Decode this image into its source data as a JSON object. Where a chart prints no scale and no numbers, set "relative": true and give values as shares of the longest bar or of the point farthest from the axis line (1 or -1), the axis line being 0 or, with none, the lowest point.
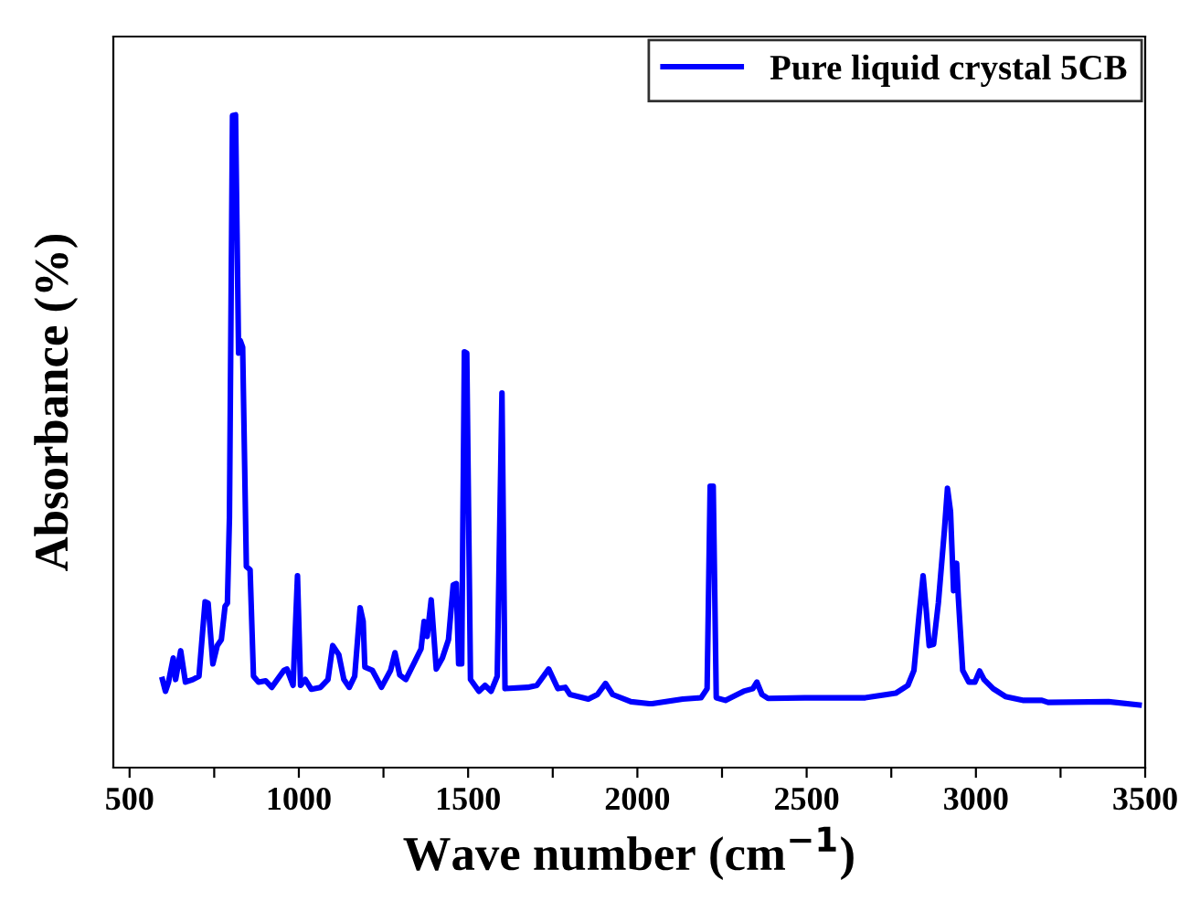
{
  "chart_data": {
    "type": "line",
    "xlabel": "Wave number (cm$^{−1}$)",
    "ylabel": "Absorbance (%)",
    "relative": true,
    "legend": "top right",
    "xlim": [
      452,
      3500
    ],
    "xticks": [
      500,
      {
        "value": 750,
        "label": null
      },
      1000,
      {
        "value": 1250,
        "label": null
      },
      1500,
      {
        "value": 1750,
        "label": null
      },
      2000,
      {
        "value": 2250,
        "label": null
      },
      2500,
      {
        "value": 2750,
        "label": null
      },
      3000,
      {
        "value": 3250,
        "label": null
      },
      3500
    ],
    "series": [
      {
        "name": "Pure liquid crystal 5CB",
        "color": "#0000ff",
        "x": [
          597,
          606,
          615,
          629,
          636,
          651,
          665,
          687,
          705,
          723,
          732,
          746,
          759,
          771,
          782,
          789,
          795,
          804,
          813,
          822,
          827,
          834,
          845,
          856,
          866,
          881,
          902,
          920,
          956,
          965,
          983,
          996,
          1005,
          1019,
          1037,
          1064,
          1086,
          1100,
          1118,
          1133,
          1149,
          1165,
          1181,
          1190,
          1195,
          1217,
          1244,
          1271,
          1284,
          1298,
          1316,
          1343,
          1361,
          1370,
          1379,
          1391,
          1406,
          1424,
          1442,
          1456,
          1465,
          1472,
          1481,
          1489,
          1496,
          1507,
          1532,
          1550,
          1568,
          1586,
          1600,
          1609,
          1676,
          1703,
          1738,
          1765,
          1787,
          1801,
          1855,
          1882,
          1906,
          1927,
          1981,
          2035,
          2044,
          2134,
          2188,
          2206,
          2215,
          2224,
          2233,
          2260,
          2314,
          2341,
          2353,
          2368,
          2386,
          2494,
          2673,
          2763,
          2799,
          2817,
          2832,
          2844,
          2853,
          2862,
          2875,
          2889,
          2907,
          2916,
          2925,
          2934,
          2943,
          2948,
          2961,
          2979,
          2997,
          3011,
          3024,
          3051,
          3087,
          3141,
          3195,
          3213,
          3392,
          3482
        ],
        "values": [
          0.135,
          0.117,
          0.131,
          0.168,
          0.135,
          0.179,
          0.131,
          0.135,
          0.14,
          0.254,
          0.252,
          0.159,
          0.187,
          0.196,
          0.247,
          0.252,
          0.383,
          0.999,
          1.0,
          0.635,
          0.654,
          0.644,
          0.308,
          0.303,
          0.14,
          0.131,
          0.133,
          0.123,
          0.149,
          0.151,
          0.126,
          0.294,
          0.126,
          0.135,
          0.12,
          0.123,
          0.135,
          0.187,
          0.173,
          0.135,
          0.123,
          0.14,
          0.245,
          0.224,
          0.154,
          0.149,
          0.123,
          0.149,
          0.176,
          0.142,
          0.135,
          0.163,
          0.182,
          0.224,
          0.201,
          0.257,
          0.151,
          0.168,
          0.196,
          0.28,
          0.282,
          0.159,
          0.159,
          0.637,
          0.635,
          0.135,
          0.117,
          0.126,
          0.117,
          0.14,
          0.574,
          0.121,
          0.123,
          0.126,
          0.151,
          0.121,
          0.123,
          0.112,
          0.105,
          0.112,
          0.129,
          0.112,
          0.101,
          0.098,
          0.098,
          0.105,
          0.107,
          0.121,
          0.431,
          0.431,
          0.107,
          0.103,
          0.117,
          0.121,
          0.131,
          0.112,
          0.106,
          0.107,
          0.107,
          0.114,
          0.126,
          0.149,
          0.233,
          0.294,
          0.243,
          0.187,
          0.189,
          0.252,
          0.364,
          0.428,
          0.392,
          0.271,
          0.313,
          0.261,
          0.149,
          0.131,
          0.131,
          0.148,
          0.135,
          0.121,
          0.109,
          0.103,
          0.103,
          0.1,
          0.101,
          0.096
        ]
      }
    ]
  }
}
